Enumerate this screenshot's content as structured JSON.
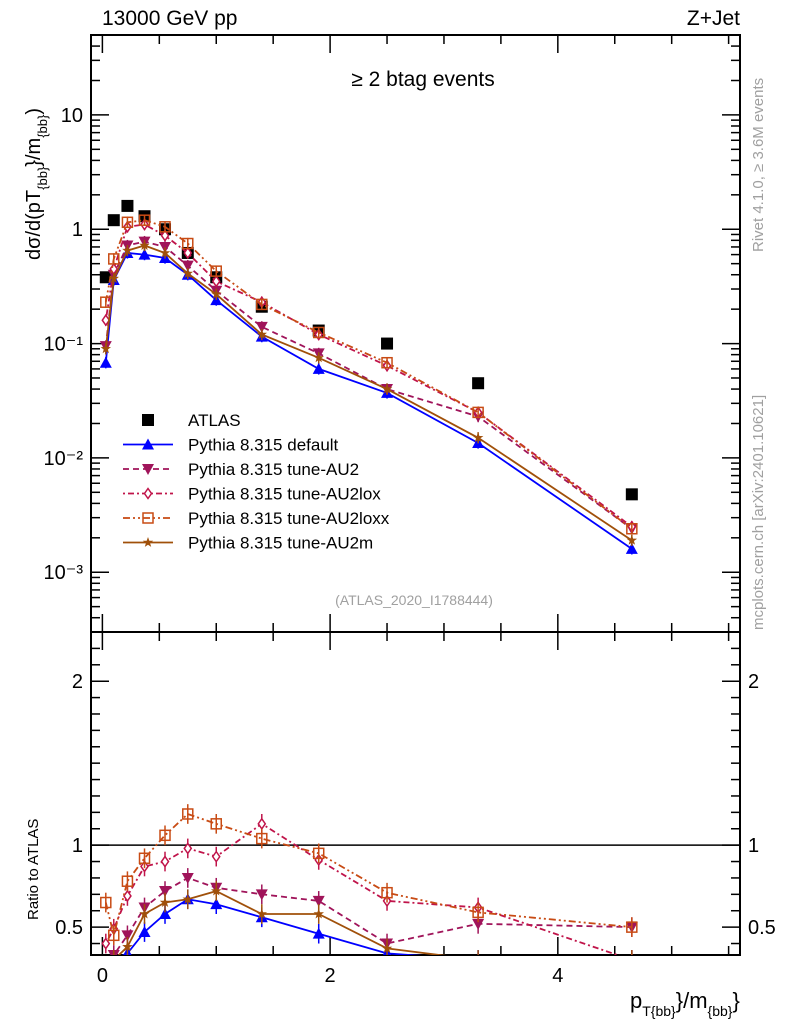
{
  "header": {
    "energy_label": "13000 GeV pp",
    "process_label": "Z+Jet",
    "selection_label": "≥ 2 btag events",
    "analysis_id": "(ATLAS_2020_I1788444)",
    "side_label_top": "Rivet 4.1.0, ≥ 3.6M events",
    "side_label_bottom": "mcplots.cern.ch [arXiv:2401.10621]"
  },
  "chart_data": [
    {
      "type": "line",
      "panel": "main",
      "title": "≥ 2 btag events",
      "xlabel": "p_T{bb}/m_{bb}",
      "ylabel": "dσ/d(pT_{bb}}/m_{bb})",
      "yscale": "log",
      "ylim": [
        0.0003,
        50
      ],
      "xlim": [
        -0.1,
        5.6
      ],
      "ytick_labels": [
        "10⁻³",
        "10⁻²",
        "10⁻¹",
        "1",
        "10"
      ],
      "ytick_values": [
        0.001,
        0.01,
        0.1,
        1,
        10
      ],
      "legend_position": "bottom-left",
      "x": [
        0.03,
        0.1,
        0.22,
        0.37,
        0.55,
        0.75,
        1.0,
        1.4,
        1.9,
        2.5,
        3.3,
        4.65
      ],
      "series": [
        {
          "name": "ATLAS",
          "style": "data",
          "color": "#000000",
          "marker": "square-filled",
          "values": [
            0.38,
            1.2,
            1.6,
            1.3,
            1.0,
            0.62,
            0.38,
            0.21,
            0.13,
            0.1,
            0.045,
            0.0048
          ]
        },
        {
          "name": "Pythia 8.315 default",
          "color": "#0000ff",
          "marker": "triangle-up-filled",
          "dash": "solid",
          "values": [
            0.068,
            0.36,
            0.62,
            0.6,
            0.56,
            0.4,
            0.24,
            0.115,
            0.06,
            0.037,
            0.0135,
            0.0016
          ]
        },
        {
          "name": "Pythia 8.315 tune-AU2",
          "color": "#a0145a",
          "marker": "triangle-down-filled",
          "dash": "dashed",
          "values": [
            0.095,
            0.4,
            0.72,
            0.78,
            0.7,
            0.48,
            0.29,
            0.14,
            0.082,
            0.04,
            0.023,
            0.0024
          ]
        },
        {
          "name": "Pythia 8.315 tune-AU2lox",
          "color": "#c0144a",
          "marker": "diamond-open",
          "dash": "dashdot",
          "values": [
            0.16,
            0.45,
            1.05,
            1.1,
            0.88,
            0.62,
            0.35,
            0.23,
            0.12,
            0.064,
            0.025,
            0.0025
          ]
        },
        {
          "name": "Pythia 8.315 tune-AU2loxx",
          "color": "#c84b14",
          "marker": "square-open",
          "dash": "dashdotdot",
          "values": [
            0.23,
            0.55,
            1.15,
            1.2,
            1.05,
            0.75,
            0.43,
            0.22,
            0.125,
            0.068,
            0.025,
            0.0024
          ]
        },
        {
          "name": "Pythia 8.315 tune-AU2m",
          "color": "#a0500a",
          "marker": "star-filled",
          "dash": "solid",
          "values": [
            0.09,
            0.37,
            0.65,
            0.72,
            0.62,
            0.41,
            0.27,
            0.12,
            0.075,
            0.04,
            0.015,
            0.0019
          ]
        }
      ]
    },
    {
      "type": "line",
      "panel": "ratio",
      "ylabel": "Ratio to ATLAS",
      "xlabel": "p_T{bb}/m_{bb}",
      "ylim": [
        0.33,
        2.3
      ],
      "xlim": [
        -0.1,
        5.6
      ],
      "ytick_labels": [
        "0.5",
        "1",
        "2"
      ],
      "ytick_values": [
        0.5,
        1,
        2
      ],
      "xtick_labels": [
        "0",
        "2",
        "4"
      ],
      "xtick_values": [
        0,
        2,
        4
      ],
      "reference_line": 1,
      "x": [
        0.03,
        0.1,
        0.22,
        0.37,
        0.55,
        0.75,
        1.0,
        1.4,
        1.9,
        2.5,
        3.3,
        4.65
      ],
      "series": [
        {
          "name": "Pythia 8.315 default",
          "color": "#0000ff",
          "values": [
            0.18,
            0.3,
            0.34,
            0.47,
            0.58,
            0.67,
            0.64,
            0.56,
            0.46,
            0.34,
            0.3,
            0.3
          ]
        },
        {
          "name": "Pythia 8.315 tune-AU2",
          "color": "#a0145a",
          "values": [
            0.25,
            0.33,
            0.45,
            0.62,
            0.72,
            0.8,
            0.74,
            0.7,
            0.66,
            0.4,
            0.52,
            0.5
          ]
        },
        {
          "name": "Pythia 8.315 tune-AU2lox",
          "color": "#c0144a",
          "values": [
            0.4,
            0.49,
            0.69,
            0.87,
            0.9,
            0.98,
            0.93,
            1.13,
            0.91,
            0.66,
            0.62,
            0.3
          ]
        },
        {
          "name": "Pythia 8.315 tune-AU2loxx",
          "color": "#c84b14",
          "values": [
            0.65,
            0.45,
            0.78,
            0.92,
            1.06,
            1.19,
            1.13,
            1.04,
            0.95,
            0.71,
            0.59,
            0.5
          ]
        },
        {
          "name": "Pythia 8.315 tune-AU2m",
          "color": "#a0500a",
          "values": [
            0.2,
            0.3,
            0.38,
            0.58,
            0.65,
            0.67,
            0.72,
            0.58,
            0.58,
            0.37,
            0.3,
            0.3
          ]
        }
      ]
    }
  ]
}
